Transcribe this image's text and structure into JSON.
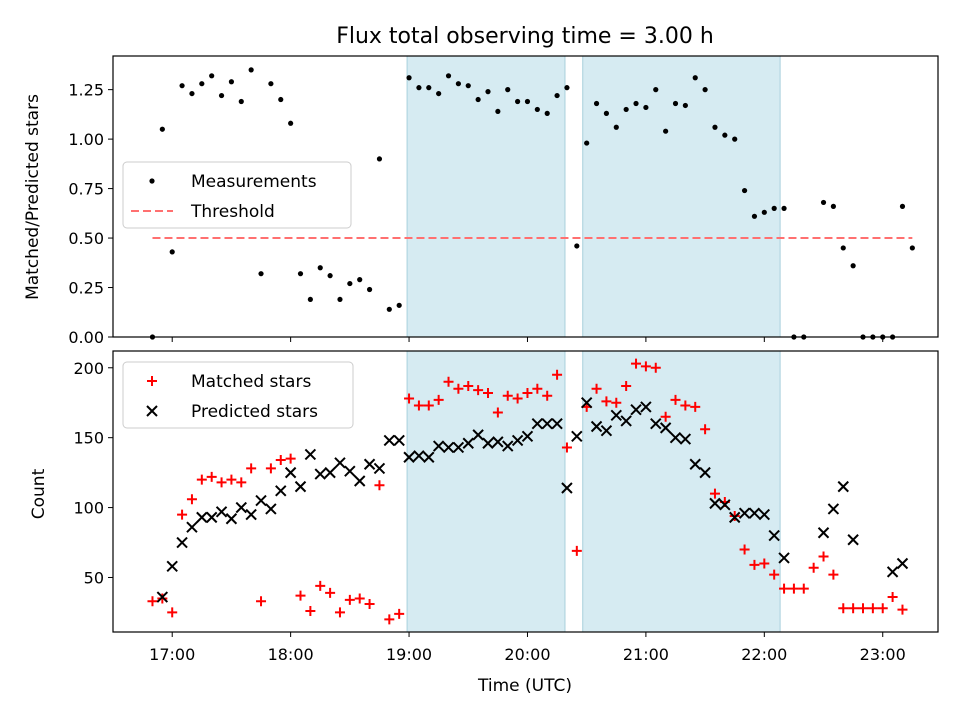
{
  "chart_data": [
    {
      "type": "scatter",
      "title": "Flux total observing time = 3.00 h",
      "xlabel": "",
      "ylabel": "Matched/Predicted stars",
      "xlim": [
        "16:30",
        "23:28"
      ],
      "ylim": [
        0,
        1.42
      ],
      "yticks": [
        "0.00",
        "0.25",
        "0.50",
        "0.75",
        "1.00",
        "1.25"
      ],
      "xticks": [
        "17:00",
        "18:00",
        "19:00",
        "20:00",
        "21:00",
        "22:00",
        "23:00"
      ],
      "legend_position": "center-left",
      "shaded_regions": [
        [
          "18:59",
          "20:19"
        ],
        [
          "20:28",
          "22:08"
        ]
      ],
      "series": [
        {
          "name": "Measurements",
          "marker": "dot",
          "color": "#000000",
          "points": [
            [
              "16:50",
              0.0
            ],
            [
              "16:55",
              1.05
            ],
            [
              "17:00",
              0.43
            ],
            [
              "17:05",
              1.27
            ],
            [
              "17:10",
              1.23
            ],
            [
              "17:15",
              1.28
            ],
            [
              "17:20",
              1.32
            ],
            [
              "17:25",
              1.22
            ],
            [
              "17:30",
              1.29
            ],
            [
              "17:35",
              1.19
            ],
            [
              "17:40",
              1.35
            ],
            [
              "17:45",
              0.32
            ],
            [
              "17:50",
              1.28
            ],
            [
              "17:55",
              1.2
            ],
            [
              "18:00",
              1.08
            ],
            [
              "18:05",
              0.32
            ],
            [
              "18:10",
              0.19
            ],
            [
              "18:15",
              0.35
            ],
            [
              "18:20",
              0.31
            ],
            [
              "18:25",
              0.19
            ],
            [
              "18:30",
              0.27
            ],
            [
              "18:35",
              0.29
            ],
            [
              "18:40",
              0.24
            ],
            [
              "18:45",
              0.9
            ],
            [
              "18:50",
              0.14
            ],
            [
              "18:55",
              0.16
            ],
            [
              "19:00",
              1.31
            ],
            [
              "19:05",
              1.26
            ],
            [
              "19:10",
              1.26
            ],
            [
              "19:15",
              1.23
            ],
            [
              "19:20",
              1.32
            ],
            [
              "19:25",
              1.28
            ],
            [
              "19:30",
              1.27
            ],
            [
              "19:35",
              1.2
            ],
            [
              "19:40",
              1.24
            ],
            [
              "19:45",
              1.14
            ],
            [
              "19:50",
              1.25
            ],
            [
              "19:55",
              1.19
            ],
            [
              "20:00",
              1.19
            ],
            [
              "20:05",
              1.15
            ],
            [
              "20:10",
              1.13
            ],
            [
              "20:15",
              1.22
            ],
            [
              "20:20",
              1.26
            ],
            [
              "20:25",
              0.46
            ],
            [
              "20:30",
              0.98
            ],
            [
              "20:35",
              1.18
            ],
            [
              "20:40",
              1.13
            ],
            [
              "20:45",
              1.06
            ],
            [
              "20:50",
              1.15
            ],
            [
              "20:55",
              1.18
            ],
            [
              "21:00",
              1.16
            ],
            [
              "21:05",
              1.25
            ],
            [
              "21:10",
              1.04
            ],
            [
              "21:15",
              1.18
            ],
            [
              "21:20",
              1.17
            ],
            [
              "21:25",
              1.31
            ],
            [
              "21:30",
              1.25
            ],
            [
              "21:35",
              1.06
            ],
            [
              "21:40",
              1.02
            ],
            [
              "21:45",
              1.0
            ],
            [
              "21:50",
              0.74
            ],
            [
              "21:55",
              0.61
            ],
            [
              "22:00",
              0.63
            ],
            [
              "22:05",
              0.65
            ],
            [
              "22:10",
              0.65
            ],
            [
              "22:15",
              0.0
            ],
            [
              "22:20",
              0.0
            ],
            [
              "22:30",
              0.68
            ],
            [
              "22:35",
              0.66
            ],
            [
              "22:40",
              0.45
            ],
            [
              "22:45",
              0.36
            ],
            [
              "22:50",
              0.0
            ],
            [
              "22:55",
              0.0
            ],
            [
              "23:00",
              0.0
            ],
            [
              "23:05",
              0.0
            ],
            [
              "23:10",
              0.66
            ],
            [
              "23:15",
              0.45
            ]
          ]
        },
        {
          "name": "Threshold",
          "marker": "dashed-line",
          "color": "#ff7070",
          "points": [
            [
              "16:50",
              0.5
            ],
            [
              "23:15",
              0.5
            ]
          ]
        }
      ]
    },
    {
      "type": "scatter",
      "title": "",
      "xlabel": "Time (UTC)",
      "ylabel": "Count",
      "xlim": [
        "16:30",
        "23:28"
      ],
      "ylim": [
        11,
        212
      ],
      "yticks": [
        "50",
        "100",
        "150",
        "200"
      ],
      "xticks": [
        "17:00",
        "18:00",
        "19:00",
        "20:00",
        "21:00",
        "22:00",
        "23:00"
      ],
      "legend_position": "top-left",
      "shaded_regions": [
        [
          "18:59",
          "20:19"
        ],
        [
          "20:28",
          "22:08"
        ]
      ],
      "series": [
        {
          "name": "Matched stars",
          "marker": "plus",
          "color": "#ff0000",
          "points": [
            [
              "16:50",
              33
            ],
            [
              "16:55",
              35
            ],
            [
              "17:00",
              25
            ],
            [
              "17:05",
              95
            ],
            [
              "17:10",
              106
            ],
            [
              "17:15",
              120
            ],
            [
              "17:20",
              122
            ],
            [
              "17:25",
              118
            ],
            [
              "17:30",
              120
            ],
            [
              "17:35",
              118
            ],
            [
              "17:40",
              128
            ],
            [
              "17:45",
              33
            ],
            [
              "17:50",
              128
            ],
            [
              "17:55",
              134
            ],
            [
              "18:00",
              135
            ],
            [
              "18:05",
              37
            ],
            [
              "18:10",
              26
            ],
            [
              "18:15",
              44
            ],
            [
              "18:20",
              39
            ],
            [
              "18:25",
              25
            ],
            [
              "18:30",
              34
            ],
            [
              "18:35",
              35
            ],
            [
              "18:40",
              31
            ],
            [
              "18:45",
              116
            ],
            [
              "18:50",
              20
            ],
            [
              "18:55",
              24
            ],
            [
              "19:00",
              178
            ],
            [
              "19:05",
              173
            ],
            [
              "19:10",
              173
            ],
            [
              "19:15",
              177
            ],
            [
              "19:20",
              190
            ],
            [
              "19:25",
              185
            ],
            [
              "19:30",
              187
            ],
            [
              "19:35",
              184
            ],
            [
              "19:40",
              182
            ],
            [
              "19:45",
              168
            ],
            [
              "19:50",
              180
            ],
            [
              "19:55",
              178
            ],
            [
              "20:00",
              182
            ],
            [
              "20:05",
              185
            ],
            [
              "20:10",
              180
            ],
            [
              "20:15",
              195
            ],
            [
              "20:20",
              143
            ],
            [
              "20:25",
              69
            ],
            [
              "20:30",
              172
            ],
            [
              "20:35",
              185
            ],
            [
              "20:40",
              176
            ],
            [
              "20:45",
              175
            ],
            [
              "20:50",
              187
            ],
            [
              "20:55",
              203
            ],
            [
              "21:00",
              201
            ],
            [
              "21:05",
              200
            ],
            [
              "21:10",
              165
            ],
            [
              "21:15",
              177
            ],
            [
              "21:20",
              173
            ],
            [
              "21:25",
              172
            ],
            [
              "21:30",
              156
            ],
            [
              "21:35",
              110
            ],
            [
              "21:40",
              104
            ],
            [
              "21:45",
              94
            ],
            [
              "21:50",
              70
            ],
            [
              "21:55",
              59
            ],
            [
              "22:00",
              60
            ],
            [
              "22:05",
              52
            ],
            [
              "22:10",
              42
            ],
            [
              "22:15",
              42
            ],
            [
              "22:20",
              42
            ],
            [
              "22:25",
              57
            ],
            [
              "22:30",
              65
            ],
            [
              "22:35",
              52
            ],
            [
              "22:40",
              28
            ],
            [
              "22:45",
              28
            ],
            [
              "22:50",
              28
            ],
            [
              "22:55",
              28
            ],
            [
              "23:00",
              28
            ],
            [
              "23:05",
              36
            ],
            [
              "23:10",
              27
            ]
          ]
        },
        {
          "name": "Predicted stars",
          "marker": "x",
          "color": "#000000",
          "points": [
            [
              "16:55",
              36
            ],
            [
              "17:00",
              58
            ],
            [
              "17:05",
              75
            ],
            [
              "17:10",
              86
            ],
            [
              "17:15",
              93
            ],
            [
              "17:20",
              93
            ],
            [
              "17:25",
              97
            ],
            [
              "17:30",
              92
            ],
            [
              "17:35",
              100
            ],
            [
              "17:40",
              95
            ],
            [
              "17:45",
              105
            ],
            [
              "17:50",
              99
            ],
            [
              "17:55",
              112
            ],
            [
              "18:00",
              125
            ],
            [
              "18:05",
              115
            ],
            [
              "18:10",
              138
            ],
            [
              "18:15",
              124
            ],
            [
              "18:20",
              125
            ],
            [
              "18:25",
              132
            ],
            [
              "18:30",
              126
            ],
            [
              "18:35",
              119
            ],
            [
              "18:40",
              131
            ],
            [
              "18:45",
              128
            ],
            [
              "18:50",
              148
            ],
            [
              "18:55",
              148
            ],
            [
              "19:00",
              136
            ],
            [
              "19:05",
              137
            ],
            [
              "19:10",
              136
            ],
            [
              "19:15",
              144
            ],
            [
              "19:20",
              143
            ],
            [
              "19:25",
              143
            ],
            [
              "19:30",
              146
            ],
            [
              "19:35",
              152
            ],
            [
              "19:40",
              146
            ],
            [
              "19:45",
              147
            ],
            [
              "19:50",
              144
            ],
            [
              "19:55",
              148
            ],
            [
              "20:00",
              151
            ],
            [
              "20:05",
              160
            ],
            [
              "20:10",
              160
            ],
            [
              "20:15",
              160
            ],
            [
              "20:20",
              114
            ],
            [
              "20:25",
              151
            ],
            [
              "20:30",
              175
            ],
            [
              "20:35",
              158
            ],
            [
              "20:40",
              155
            ],
            [
              "20:45",
              166
            ],
            [
              "20:50",
              162
            ],
            [
              "20:55",
              170
            ],
            [
              "21:00",
              172
            ],
            [
              "21:05",
              160
            ],
            [
              "21:10",
              157
            ],
            [
              "21:15",
              150
            ],
            [
              "21:20",
              149
            ],
            [
              "21:25",
              131
            ],
            [
              "21:30",
              125
            ],
            [
              "21:35",
              103
            ],
            [
              "21:40",
              102
            ],
            [
              "21:45",
              93
            ],
            [
              "21:50",
              96
            ],
            [
              "21:55",
              96
            ],
            [
              "22:00",
              95
            ],
            [
              "22:05",
              80
            ],
            [
              "22:10",
              64
            ],
            [
              "22:30",
              82
            ],
            [
              "22:35",
              99
            ],
            [
              "22:40",
              115
            ],
            [
              "22:45",
              77
            ],
            [
              "23:05",
              54
            ],
            [
              "23:10",
              60
            ]
          ]
        }
      ]
    }
  ]
}
